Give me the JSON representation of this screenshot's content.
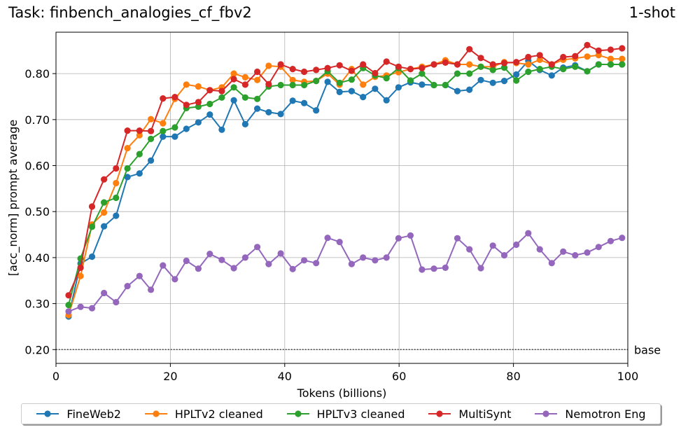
{
  "header": {
    "task_title": "Task: finbench_analogies_cf_fbv2",
    "shot_label": "1-shot"
  },
  "chart_data": {
    "type": "line",
    "title": "Task: finbench_analogies_cf_fbv2",
    "xlabel": "Tokens (billions)",
    "ylabel": "[acc_norm] prompt average",
    "xlim": [
      0,
      100
    ],
    "ylim": [
      0.17,
      0.89
    ],
    "xticks": [
      0,
      20,
      40,
      60,
      80,
      100
    ],
    "yticks": [
      0.2,
      0.3,
      0.4,
      0.5,
      0.6,
      0.7,
      0.8
    ],
    "ytick_labels": [
      "0.20",
      "0.30",
      "0.40",
      "0.50",
      "0.60",
      "0.70",
      "0.80"
    ],
    "grid": true,
    "baseline": {
      "value": 0.2,
      "label": "base"
    },
    "legend_position": "bottom",
    "x": [
      2.2,
      4.3,
      6.3,
      8.4,
      10.5,
      12.5,
      14.6,
      16.6,
      18.7,
      20.8,
      22.8,
      24.9,
      26.9,
      29.0,
      31.1,
      33.1,
      35.2,
      37.2,
      39.3,
      41.4,
      43.4,
      45.5,
      47.5,
      49.6,
      51.7,
      53.7,
      55.8,
      57.8,
      59.9,
      62.0,
      64.0,
      66.1,
      68.1,
      70.2,
      72.3,
      74.3,
      76.4,
      78.4,
      80.5,
      82.6,
      84.6,
      86.7,
      88.7,
      90.8,
      92.9,
      94.9,
      97.0,
      99.0
    ],
    "series": [
      {
        "name": "FineWeb2",
        "color": "#1f77b4",
        "values": [
          0.272,
          0.387,
          0.402,
          0.468,
          0.491,
          0.575,
          0.583,
          0.611,
          0.663,
          0.663,
          0.68,
          0.694,
          0.711,
          0.678,
          0.742,
          0.69,
          0.724,
          0.716,
          0.712,
          0.741,
          0.736,
          0.72,
          0.782,
          0.76,
          0.762,
          0.749,
          0.767,
          0.742,
          0.77,
          0.781,
          0.776,
          0.775,
          0.775,
          0.762,
          0.765,
          0.786,
          0.78,
          0.784,
          0.798,
          0.828,
          0.808,
          0.796,
          0.813,
          0.818,
          0.805,
          0.82,
          0.82,
          0.82
        ]
      },
      {
        "name": "HPLTv2 cleaned",
        "color": "#ff7f0e",
        "values": [
          0.275,
          0.36,
          0.472,
          0.498,
          0.562,
          0.638,
          0.666,
          0.701,
          0.692,
          0.745,
          0.776,
          0.772,
          0.764,
          0.77,
          0.8,
          0.792,
          0.786,
          0.817,
          0.815,
          0.786,
          0.782,
          0.784,
          0.8,
          0.776,
          0.81,
          0.776,
          0.793,
          0.796,
          0.803,
          0.81,
          0.815,
          0.82,
          0.829,
          0.82,
          0.82,
          0.815,
          0.815,
          0.825,
          0.823,
          0.82,
          0.83,
          0.82,
          0.83,
          0.833,
          0.837,
          0.84,
          0.832,
          0.832
        ]
      },
      {
        "name": "HPLTv3 cleaned",
        "color": "#2ca02c",
        "values": [
          0.297,
          0.398,
          0.467,
          0.52,
          0.53,
          0.594,
          0.625,
          0.658,
          0.675,
          0.683,
          0.725,
          0.728,
          0.734,
          0.748,
          0.77,
          0.748,
          0.745,
          0.772,
          0.775,
          0.775,
          0.775,
          0.784,
          0.805,
          0.78,
          0.787,
          0.812,
          0.796,
          0.79,
          0.812,
          0.785,
          0.8,
          0.775,
          0.775,
          0.8,
          0.8,
          0.815,
          0.808,
          0.813,
          0.785,
          0.804,
          0.81,
          0.815,
          0.81,
          0.815,
          0.805,
          0.82,
          0.82,
          0.82
        ]
      },
      {
        "name": "MultiSynt",
        "color": "#d62728",
        "values": [
          0.318,
          0.378,
          0.511,
          0.57,
          0.594,
          0.676,
          0.676,
          0.675,
          0.746,
          0.749,
          0.732,
          0.738,
          0.764,
          0.762,
          0.788,
          0.776,
          0.804,
          0.777,
          0.82,
          0.81,
          0.804,
          0.808,
          0.812,
          0.818,
          0.806,
          0.82,
          0.801,
          0.826,
          0.815,
          0.81,
          0.812,
          0.82,
          0.824,
          0.82,
          0.853,
          0.834,
          0.82,
          0.823,
          0.825,
          0.836,
          0.84,
          0.82,
          0.836,
          0.838,
          0.862,
          0.85,
          0.852,
          0.855
        ]
      },
      {
        "name": "Nemotron Eng",
        "color": "#9467bd",
        "values": [
          0.283,
          0.293,
          0.29,
          0.323,
          0.303,
          0.338,
          0.36,
          0.33,
          0.383,
          0.353,
          0.393,
          0.376,
          0.408,
          0.395,
          0.377,
          0.4,
          0.423,
          0.386,
          0.409,
          0.375,
          0.394,
          0.388,
          0.443,
          0.434,
          0.386,
          0.4,
          0.394,
          0.4,
          0.442,
          0.448,
          0.374,
          0.376,
          0.378,
          0.442,
          0.418,
          0.377,
          0.426,
          0.405,
          0.428,
          0.453,
          0.418,
          0.388,
          0.413,
          0.405,
          0.411,
          0.423,
          0.436,
          0.443
        ]
      }
    ]
  }
}
